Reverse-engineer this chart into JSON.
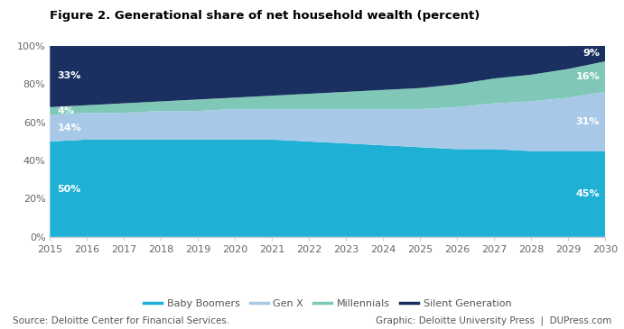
{
  "title": "Figure 2. Generational share of net household wealth (percent)",
  "years": [
    2015,
    2016,
    2017,
    2018,
    2019,
    2020,
    2021,
    2022,
    2023,
    2024,
    2025,
    2026,
    2027,
    2028,
    2029,
    2030
  ],
  "baby_boomers": [
    50,
    51,
    51,
    51,
    51,
    51,
    51,
    50,
    49,
    48,
    47,
    46,
    46,
    45,
    45,
    45
  ],
  "gen_x": [
    14,
    14,
    14,
    15,
    15,
    16,
    16,
    17,
    18,
    19,
    20,
    22,
    24,
    26,
    28,
    31
  ],
  "millennials": [
    4,
    4,
    5,
    5,
    6,
    6,
    7,
    8,
    9,
    10,
    11,
    12,
    13,
    14,
    15,
    16
  ],
  "silent_gen": [
    33,
    32,
    31,
    29,
    28,
    27,
    26,
    25,
    24,
    23,
    22,
    20,
    17,
    15,
    12,
    9
  ],
  "colors": {
    "baby_boomers": "#1EB0D5",
    "gen_x": "#A8C8E8",
    "millennials": "#7FC8B8",
    "silent_gen": "#1A3060"
  },
  "label_color_bb": "#FFFFFF",
  "label_color_gx": "#FFFFFF",
  "label_color_ml": "#FFFFFF",
  "label_color_sg": "#FFFFFF",
  "labels_2015": {
    "baby_boomers": "50%",
    "gen_x": "14%",
    "millennials": "4%",
    "silent_gen": "33%"
  },
  "labels_2030": {
    "baby_boomers": "45%",
    "gen_x": "31%",
    "millennials": "16%",
    "silent_gen": "9%"
  },
  "legend_labels": [
    "Baby Boomers",
    "Gen X",
    "Millennials",
    "Silent Generation"
  ],
  "source_left": "Source: Deloitte Center for Financial Services.",
  "source_right": "Graphic: Deloitte University Press  |  DUPress.com",
  "bg_color": "#FFFFFF",
  "plot_bg_color": "#FFFFFF",
  "yticks": [
    0,
    20,
    40,
    60,
    80,
    100
  ],
  "ytick_labels": [
    "0%",
    "20%",
    "40%",
    "60%",
    "80%",
    "100%"
  ]
}
